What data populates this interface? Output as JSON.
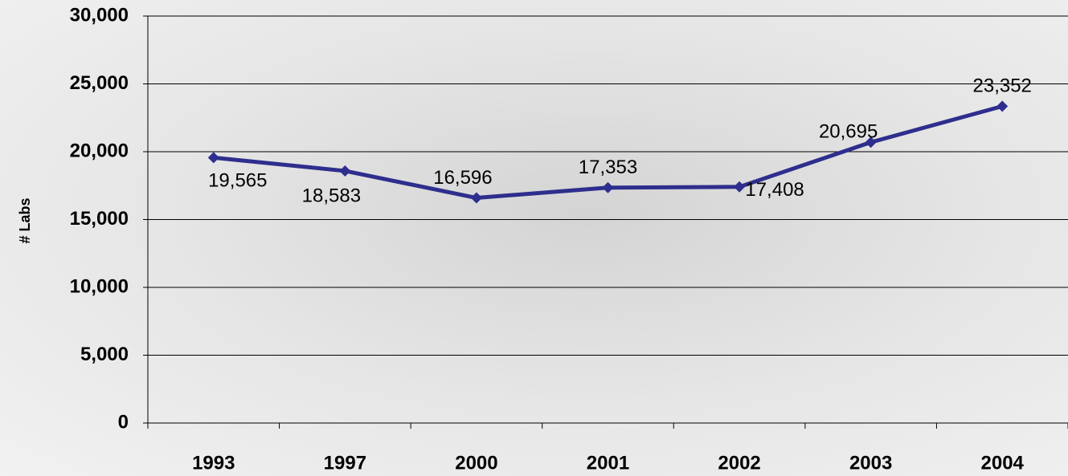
{
  "chart_data": {
    "type": "line",
    "y_label": "# Labs",
    "categories": [
      "1993",
      "1997",
      "2000",
      "2001",
      "2002",
      "2003",
      "2004"
    ],
    "series": [
      {
        "name": "Labs",
        "color": "#2e2e8e",
        "values": [
          19565,
          18583,
          16596,
          17353,
          17408,
          20695,
          23352
        ],
        "value_labels": [
          "19,565",
          "18,583",
          "16,596",
          "17,353",
          "17,408",
          "20,695",
          "23,352"
        ]
      }
    ],
    "ylim": [
      0,
      30000
    ],
    "yticks": [
      0,
      {
        "value": 5000,
        "label": "5,000"
      },
      {
        "value": 10000,
        "label": "10,000"
      },
      {
        "value": 15000,
        "label": "15,000"
      },
      {
        "value": 20000,
        "label": "20,000"
      },
      {
        "value": 25000,
        "label": "25,000"
      },
      {
        "value": 30000,
        "label": "30,000"
      }
    ],
    "grid": true
  }
}
